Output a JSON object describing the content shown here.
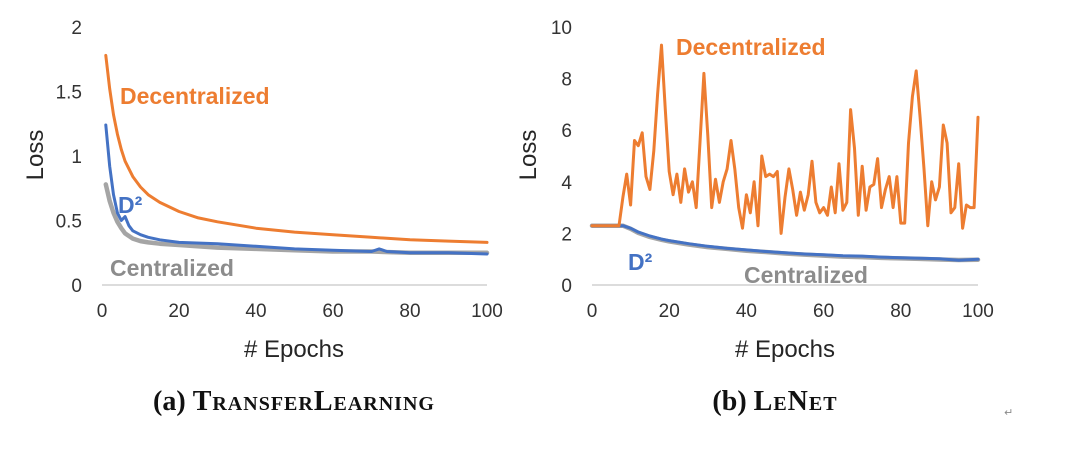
{
  "chart_data": [
    {
      "type": "line",
      "caption_label": "(a)",
      "title": "TransferLearning",
      "xlabel": "# Epochs",
      "ylabel": "Loss",
      "xlim": [
        0,
        100
      ],
      "ylim": [
        0,
        2
      ],
      "xticks": [
        0,
        20,
        40,
        60,
        80,
        100
      ],
      "yticks": [
        0,
        0.5,
        1,
        1.5,
        2
      ],
      "grid": false,
      "legend": "inline",
      "series": [
        {
          "name": "Decentralized",
          "color": "#ED7D31",
          "x": [
            1,
            2,
            3,
            4,
            5,
            6,
            8,
            10,
            12,
            15,
            20,
            25,
            30,
            40,
            50,
            60,
            70,
            80,
            90,
            100
          ],
          "y": [
            1.78,
            1.52,
            1.32,
            1.17,
            1.05,
            0.96,
            0.84,
            0.76,
            0.7,
            0.64,
            0.57,
            0.52,
            0.49,
            0.44,
            0.41,
            0.39,
            0.37,
            0.35,
            0.34,
            0.33
          ]
        },
        {
          "name": "D²",
          "color": "#4472C4",
          "x": [
            1,
            2,
            3,
            4,
            5,
            6,
            7,
            8,
            10,
            12,
            15,
            20,
            30,
            40,
            50,
            60,
            70,
            72,
            74,
            80,
            90,
            100
          ],
          "y": [
            1.24,
            0.92,
            0.7,
            0.56,
            0.5,
            0.53,
            0.46,
            0.42,
            0.39,
            0.37,
            0.35,
            0.33,
            0.32,
            0.3,
            0.28,
            0.27,
            0.26,
            0.28,
            0.26,
            0.25,
            0.25,
            0.24
          ]
        },
        {
          "name": "Centralized",
          "color": "#A5A5A5",
          "x": [
            1,
            2,
            3,
            4,
            5,
            6,
            8,
            10,
            12,
            15,
            20,
            30,
            40,
            50,
            60,
            70,
            80,
            90,
            100
          ],
          "y": [
            0.78,
            0.65,
            0.56,
            0.49,
            0.44,
            0.4,
            0.36,
            0.34,
            0.33,
            0.32,
            0.31,
            0.29,
            0.28,
            0.27,
            0.26,
            0.26,
            0.25,
            0.25,
            0.25
          ]
        }
      ]
    },
    {
      "type": "line",
      "caption_label": "(b)",
      "title": "LeNet",
      "xlabel": "# Epochs",
      "ylabel": "Loss",
      "xlim": [
        0,
        100
      ],
      "ylim": [
        0,
        10
      ],
      "xticks": [
        0,
        20,
        40,
        60,
        80,
        100
      ],
      "yticks": [
        0,
        2,
        4,
        6,
        8,
        10
      ],
      "grid": false,
      "legend": "inline",
      "series": [
        {
          "name": "Decentralized",
          "color": "#ED7D31",
          "x": [
            0,
            1,
            2,
            3,
            4,
            5,
            6,
            7,
            8,
            9,
            10,
            11,
            12,
            13,
            14,
            15,
            16,
            17,
            18,
            19,
            20,
            21,
            22,
            23,
            24,
            25,
            26,
            27,
            28,
            29,
            30,
            31,
            32,
            33,
            34,
            35,
            36,
            37,
            38,
            39,
            40,
            41,
            42,
            43,
            44,
            45,
            46,
            47,
            48,
            49,
            50,
            51,
            52,
            53,
            54,
            55,
            56,
            57,
            58,
            59,
            60,
            61,
            62,
            63,
            64,
            65,
            66,
            67,
            68,
            69,
            70,
            71,
            72,
            73,
            74,
            75,
            76,
            77,
            78,
            79,
            80,
            81,
            82,
            83,
            84,
            85,
            86,
            87,
            88,
            89,
            90,
            91,
            92,
            93,
            94,
            95,
            96,
            97,
            98,
            99,
            100
          ],
          "y": [
            2.3,
            2.3,
            2.3,
            2.3,
            2.3,
            2.3,
            2.3,
            2.3,
            3.4,
            4.3,
            3.1,
            5.6,
            5.4,
            5.9,
            4.2,
            3.7,
            5.2,
            7.4,
            9.3,
            6.8,
            4.4,
            3.5,
            4.3,
            3.2,
            4.5,
            3.6,
            4.0,
            3.0,
            5.6,
            8.2,
            5.8,
            3.0,
            4.1,
            3.2,
            4.0,
            4.5,
            5.6,
            4.5,
            3.0,
            2.2,
            3.5,
            2.8,
            4.0,
            2.3,
            5.0,
            4.2,
            4.3,
            4.2,
            4.4,
            2.0,
            3.4,
            4.5,
            3.7,
            2.7,
            3.6,
            2.9,
            3.5,
            4.8,
            3.2,
            2.8,
            3.0,
            2.7,
            3.8,
            2.8,
            4.7,
            2.9,
            3.2,
            6.8,
            5.3,
            2.7,
            4.6,
            2.9,
            3.8,
            3.9,
            4.9,
            3.0,
            3.7,
            4.2,
            3.0,
            4.2,
            2.4,
            2.4,
            5.5,
            7.3,
            8.3,
            6.5,
            4.5,
            2.3,
            4.0,
            3.3,
            3.8,
            6.2,
            5.5,
            2.8,
            3.0,
            4.7,
            2.2,
            3.1,
            3.0,
            3.0,
            6.5
          ]
        },
        {
          "name": "D²",
          "color": "#4472C4",
          "x": [
            0,
            5,
            8,
            10,
            12,
            15,
            18,
            20,
            25,
            30,
            35,
            40,
            45,
            50,
            55,
            60,
            65,
            70,
            75,
            80,
            85,
            90,
            95,
            100
          ],
          "y": [
            2.3,
            2.3,
            2.3,
            2.2,
            2.05,
            1.9,
            1.78,
            1.72,
            1.6,
            1.5,
            1.42,
            1.36,
            1.3,
            1.25,
            1.2,
            1.17,
            1.13,
            1.12,
            1.08,
            1.06,
            1.04,
            1.02,
            0.96,
            1.0
          ]
        },
        {
          "name": "Centralized",
          "color": "#A5A5A5",
          "x": [
            0,
            5,
            8,
            10,
            12,
            15,
            18,
            20,
            25,
            30,
            35,
            40,
            45,
            50,
            55,
            60,
            65,
            70,
            75,
            80,
            85,
            90,
            95,
            100
          ],
          "y": [
            2.3,
            2.3,
            2.3,
            2.18,
            2.02,
            1.86,
            1.75,
            1.69,
            1.57,
            1.47,
            1.4,
            1.33,
            1.28,
            1.22,
            1.18,
            1.14,
            1.1,
            1.08,
            1.05,
            1.03,
            1.01,
            0.99,
            0.97,
            0.98
          ]
        }
      ]
    }
  ],
  "page": {
    "return_mark": "↵"
  }
}
